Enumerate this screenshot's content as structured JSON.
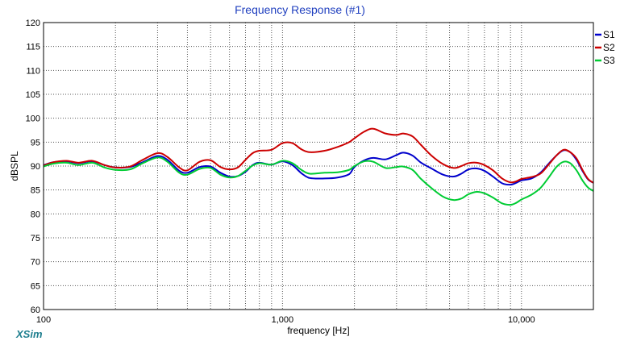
{
  "app": {
    "brand": "XSim"
  },
  "chart_data": {
    "type": "line",
    "title": "Frequency Response (#1)",
    "xlabel": "frequency [Hz]",
    "ylabel": "dBSPL",
    "xscale": "log",
    "xlim": [
      100,
      20000
    ],
    "ylim": [
      60,
      120
    ],
    "yticks": [
      60,
      65,
      70,
      75,
      80,
      85,
      90,
      95,
      100,
      105,
      110,
      115,
      120
    ],
    "xtick_labels": [
      {
        "value": 100,
        "label": "100"
      },
      {
        "value": 1000,
        "label": "1,000"
      },
      {
        "value": 10000,
        "label": "10,000"
      }
    ],
    "grid": true,
    "legend": "right",
    "series": [
      {
        "name": "S1",
        "color": "#0000cc",
        "points": [
          [
            100,
            90.2
          ],
          [
            110,
            90.8
          ],
          [
            125,
            91.0
          ],
          [
            140,
            90.6
          ],
          [
            160,
            91.0
          ],
          [
            180,
            90.2
          ],
          [
            200,
            89.7
          ],
          [
            230,
            89.8
          ],
          [
            260,
            90.8
          ],
          [
            300,
            92.1
          ],
          [
            330,
            91.3
          ],
          [
            370,
            89.0
          ],
          [
            400,
            88.6
          ],
          [
            450,
            89.8
          ],
          [
            500,
            89.9
          ],
          [
            550,
            88.6
          ],
          [
            600,
            87.8
          ],
          [
            650,
            87.9
          ],
          [
            700,
            88.8
          ],
          [
            750,
            90.2
          ],
          [
            800,
            90.7
          ],
          [
            900,
            90.3
          ],
          [
            1000,
            91.0
          ],
          [
            1100,
            90.2
          ],
          [
            1200,
            88.5
          ],
          [
            1300,
            87.5
          ],
          [
            1500,
            87.4
          ],
          [
            1700,
            87.6
          ],
          [
            1900,
            88.3
          ],
          [
            2000,
            89.8
          ],
          [
            2200,
            91.2
          ],
          [
            2400,
            91.7
          ],
          [
            2700,
            91.4
          ],
          [
            3000,
            92.3
          ],
          [
            3200,
            92.8
          ],
          [
            3500,
            92.2
          ],
          [
            3800,
            90.7
          ],
          [
            4200,
            89.5
          ],
          [
            4700,
            88.2
          ],
          [
            5200,
            87.8
          ],
          [
            5600,
            88.4
          ],
          [
            6000,
            89.3
          ],
          [
            6500,
            89.5
          ],
          [
            7000,
            89.0
          ],
          [
            7600,
            87.8
          ],
          [
            8300,
            86.4
          ],
          [
            9000,
            86.1
          ],
          [
            9500,
            86.5
          ],
          [
            10000,
            87.0
          ],
          [
            11000,
            87.4
          ],
          [
            12000,
            88.6
          ],
          [
            13000,
            90.5
          ],
          [
            14000,
            92.2
          ],
          [
            15000,
            93.3
          ],
          [
            16000,
            92.9
          ],
          [
            17000,
            91.3
          ],
          [
            18000,
            89.0
          ],
          [
            19000,
            87.2
          ],
          [
            20000,
            86.5
          ]
        ]
      },
      {
        "name": "S2",
        "color": "#cc0000",
        "points": [
          [
            100,
            90.1
          ],
          [
            110,
            90.8
          ],
          [
            125,
            91.1
          ],
          [
            140,
            90.7
          ],
          [
            160,
            91.1
          ],
          [
            180,
            90.2
          ],
          [
            200,
            89.7
          ],
          [
            230,
            89.9
          ],
          [
            260,
            91.3
          ],
          [
            300,
            92.7
          ],
          [
            330,
            91.9
          ],
          [
            370,
            89.7
          ],
          [
            400,
            89.1
          ],
          [
            450,
            90.9
          ],
          [
            500,
            91.2
          ],
          [
            550,
            89.8
          ],
          [
            600,
            89.3
          ],
          [
            650,
            89.7
          ],
          [
            700,
            91.3
          ],
          [
            750,
            92.7
          ],
          [
            800,
            93.2
          ],
          [
            900,
            93.4
          ],
          [
            1000,
            94.8
          ],
          [
            1100,
            94.8
          ],
          [
            1200,
            93.5
          ],
          [
            1300,
            92.9
          ],
          [
            1500,
            93.2
          ],
          [
            1700,
            94.0
          ],
          [
            1900,
            95.0
          ],
          [
            2000,
            95.8
          ],
          [
            2200,
            97.2
          ],
          [
            2400,
            97.8
          ],
          [
            2700,
            96.8
          ],
          [
            3000,
            96.5
          ],
          [
            3200,
            96.8
          ],
          [
            3500,
            96.2
          ],
          [
            3800,
            94.4
          ],
          [
            4200,
            92.2
          ],
          [
            4700,
            90.4
          ],
          [
            5200,
            89.6
          ],
          [
            5600,
            90.0
          ],
          [
            6000,
            90.6
          ],
          [
            6500,
            90.7
          ],
          [
            7000,
            90.2
          ],
          [
            7600,
            89.1
          ],
          [
            8300,
            87.4
          ],
          [
            9000,
            86.6
          ],
          [
            9500,
            86.8
          ],
          [
            10000,
            87.3
          ],
          [
            11000,
            87.7
          ],
          [
            12000,
            88.4
          ],
          [
            13000,
            90.3
          ],
          [
            14000,
            92.2
          ],
          [
            15000,
            93.4
          ],
          [
            16000,
            92.9
          ],
          [
            17000,
            91.6
          ],
          [
            18000,
            89.2
          ],
          [
            19000,
            87.3
          ],
          [
            20000,
            86.5
          ]
        ]
      },
      {
        "name": "S3",
        "color": "#00cc33",
        "points": [
          [
            100,
            89.9
          ],
          [
            110,
            90.5
          ],
          [
            125,
            90.7
          ],
          [
            140,
            90.2
          ],
          [
            160,
            90.7
          ],
          [
            180,
            89.7
          ],
          [
            200,
            89.2
          ],
          [
            230,
            89.3
          ],
          [
            260,
            90.6
          ],
          [
            300,
            91.8
          ],
          [
            330,
            90.9
          ],
          [
            370,
            88.6
          ],
          [
            400,
            88.2
          ],
          [
            450,
            89.4
          ],
          [
            500,
            89.6
          ],
          [
            550,
            88.2
          ],
          [
            600,
            87.6
          ],
          [
            650,
            87.9
          ],
          [
            700,
            89.0
          ],
          [
            750,
            90.1
          ],
          [
            800,
            90.6
          ],
          [
            900,
            90.3
          ],
          [
            1000,
            91.1
          ],
          [
            1100,
            90.6
          ],
          [
            1200,
            89.2
          ],
          [
            1300,
            88.4
          ],
          [
            1500,
            88.6
          ],
          [
            1700,
            88.7
          ],
          [
            1900,
            89.2
          ],
          [
            2000,
            90.0
          ],
          [
            2200,
            91.0
          ],
          [
            2400,
            90.9
          ],
          [
            2700,
            89.6
          ],
          [
            3000,
            89.8
          ],
          [
            3200,
            89.9
          ],
          [
            3500,
            89.2
          ],
          [
            3800,
            87.3
          ],
          [
            4200,
            85.4
          ],
          [
            4700,
            83.6
          ],
          [
            5200,
            82.9
          ],
          [
            5600,
            83.2
          ],
          [
            6000,
            84.1
          ],
          [
            6500,
            84.6
          ],
          [
            7000,
            84.3
          ],
          [
            7600,
            83.4
          ],
          [
            8300,
            82.2
          ],
          [
            9000,
            81.9
          ],
          [
            9500,
            82.3
          ],
          [
            10000,
            83.0
          ],
          [
            11000,
            84.0
          ],
          [
            12000,
            85.4
          ],
          [
            13000,
            87.6
          ],
          [
            14000,
            89.8
          ],
          [
            15000,
            90.9
          ],
          [
            16000,
            90.6
          ],
          [
            17000,
            89.1
          ],
          [
            18000,
            87.0
          ],
          [
            19000,
            85.5
          ],
          [
            20000,
            84.8
          ]
        ]
      }
    ]
  }
}
